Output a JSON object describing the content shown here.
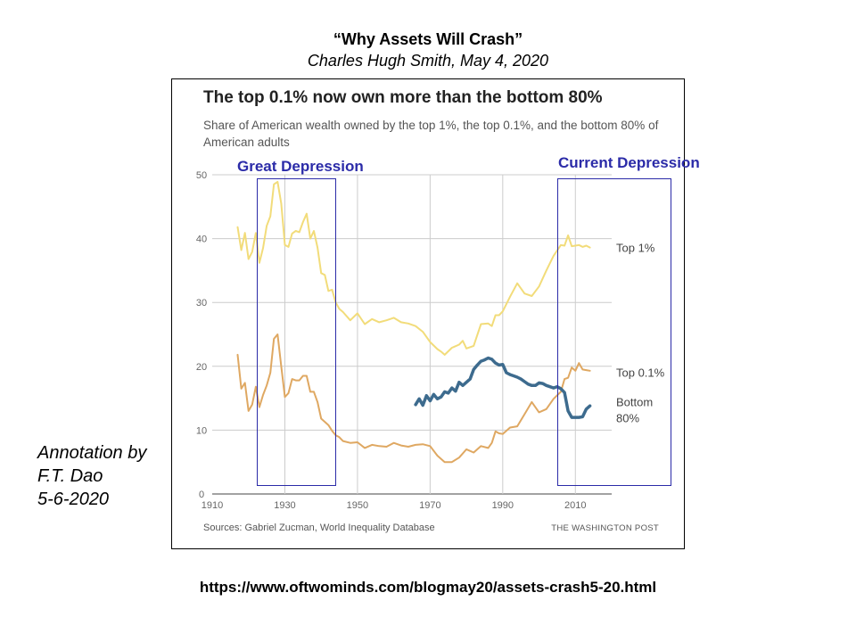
{
  "slide": {
    "title": "“Why Assets Will Crash”",
    "subtitle": "Charles Hugh Smith, May 4, 2020",
    "annotation_lines": [
      "Annotation by",
      "F.T. Dao",
      "5-6-2020"
    ],
    "url": "https://www.oftwominds.com/blogmay20/assets-crash5-20.html"
  },
  "annotations": {
    "great_depression": "Great Depression",
    "current_depression": "Current Depression",
    "color": "#2b2ba8"
  },
  "chart_data": {
    "type": "line",
    "title": "The top 0.1% now own more than the bottom 80%",
    "subtitle": "Share of American wealth owned by the top 1%, the top 0.1%, and the bottom 80% of American adults",
    "source": "Sources: Gabriel Zucman, World Inequality Database",
    "credit": "THE WASHINGTON POST",
    "xlim": [
      1910,
      2020
    ],
    "ylim": [
      0,
      50
    ],
    "xticks": [
      1910,
      1930,
      1950,
      1970,
      1990,
      2010
    ],
    "yticks": [
      0,
      10,
      20,
      30,
      40,
      50
    ],
    "grid": true,
    "series": [
      {
        "name": "Top 1%",
        "color": "#f2dc7a",
        "x": [
          1917,
          1918,
          1919,
          1920,
          1921,
          1922,
          1923,
          1924,
          1925,
          1926,
          1927,
          1928,
          1929,
          1930,
          1931,
          1932,
          1933,
          1934,
          1935,
          1936,
          1937,
          1938,
          1939,
          1940,
          1941,
          1942,
          1943,
          1944,
          1945,
          1946,
          1948,
          1950,
          1952,
          1954,
          1956,
          1958,
          1960,
          1962,
          1964,
          1966,
          1968,
          1970,
          1972,
          1973,
          1974,
          1976,
          1978,
          1979,
          1980,
          1982,
          1984,
          1986,
          1987,
          1988,
          1989,
          1990,
          1992,
          1994,
          1996,
          1998,
          2000,
          2002,
          2004,
          2006,
          2007,
          2008,
          2009,
          2010,
          2011,
          2012,
          2013,
          2014
        ],
        "y": [
          41.8,
          38.2,
          40.9,
          36.8,
          37.9,
          40.9,
          36.2,
          38.5,
          42.0,
          43.5,
          48.5,
          48.9,
          45.5,
          39.0,
          38.7,
          40.8,
          41.2,
          41.0,
          42.6,
          43.9,
          40.0,
          41.2,
          38.6,
          34.6,
          34.3,
          31.8,
          32.0,
          30.0,
          29.0,
          28.5,
          27.2,
          28.3,
          26.6,
          27.4,
          26.9,
          27.2,
          27.6,
          26.9,
          26.7,
          26.3,
          25.4,
          23.8,
          22.7,
          22.3,
          21.8,
          22.9,
          23.4,
          24.0,
          22.8,
          23.2,
          26.6,
          26.7,
          26.3,
          28.0,
          28.0,
          28.6,
          30.9,
          33.0,
          31.4,
          31.0,
          32.5,
          35.0,
          37.3,
          39.0,
          38.9,
          40.5,
          38.8,
          38.9,
          39.0,
          38.7,
          38.9,
          38.6
        ]
      },
      {
        "name": "Top 0.1%",
        "color": "#dfa862",
        "x": [
          1917,
          1918,
          1919,
          1920,
          1921,
          1922,
          1923,
          1924,
          1925,
          1926,
          1927,
          1928,
          1929,
          1930,
          1931,
          1932,
          1933,
          1934,
          1935,
          1936,
          1937,
          1938,
          1939,
          1940,
          1941,
          1942,
          1943,
          1944,
          1945,
          1946,
          1948,
          1950,
          1952,
          1954,
          1956,
          1958,
          1960,
          1962,
          1964,
          1966,
          1968,
          1970,
          1972,
          1974,
          1976,
          1978,
          1980,
          1982,
          1984,
          1986,
          1987,
          1988,
          1989,
          1990,
          1992,
          1994,
          1996,
          1998,
          2000,
          2002,
          2004,
          2006,
          2007,
          2008,
          2009,
          2010,
          2011,
          2012,
          2013,
          2014
        ],
        "y": [
          21.8,
          16.5,
          17.4,
          13.0,
          14.0,
          16.8,
          13.6,
          15.5,
          17.0,
          19.0,
          24.3,
          25.0,
          20.0,
          15.2,
          15.8,
          18.0,
          17.8,
          17.8,
          18.5,
          18.5,
          16.0,
          16.0,
          14.4,
          11.8,
          11.3,
          10.8,
          9.9,
          9.2,
          8.9,
          8.3,
          8.0,
          8.1,
          7.2,
          7.7,
          7.5,
          7.4,
          8.0,
          7.6,
          7.4,
          7.7,
          7.8,
          7.5,
          6.0,
          5.0,
          5.0,
          5.7,
          7.0,
          6.5,
          7.5,
          7.2,
          8.0,
          9.8,
          9.5,
          9.4,
          10.4,
          10.6,
          12.5,
          14.4,
          12.8,
          13.3,
          14.9,
          16.0,
          18.0,
          18.2,
          19.8,
          19.3,
          20.5,
          19.5,
          19.4,
          19.3
        ]
      },
      {
        "name": "Bottom 80%",
        "color": "#3d6b8e",
        "x": [
          1966,
          1967,
          1968,
          1969,
          1970,
          1971,
          1972,
          1973,
          1974,
          1975,
          1976,
          1977,
          1978,
          1979,
          1980,
          1981,
          1982,
          1983,
          1984,
          1985,
          1986,
          1987,
          1988,
          1989,
          1990,
          1991,
          1992,
          1993,
          1994,
          1995,
          1996,
          1997,
          1998,
          1999,
          2000,
          2001,
          2002,
          2003,
          2004,
          2005,
          2006,
          2007,
          2008,
          2009,
          2010,
          2011,
          2012,
          2013,
          2014
        ],
        "y": [
          14.0,
          14.9,
          13.9,
          15.4,
          14.6,
          15.6,
          14.9,
          15.2,
          16.0,
          15.8,
          16.6,
          16.1,
          17.5,
          17.0,
          17.5,
          18.0,
          19.5,
          20.2,
          20.8,
          21.0,
          21.3,
          21.1,
          20.5,
          20.2,
          20.3,
          19.0,
          18.7,
          18.5,
          18.3,
          18.0,
          17.6,
          17.2,
          17.0,
          17.0,
          17.4,
          17.3,
          17.0,
          16.8,
          16.6,
          16.8,
          16.5,
          15.9,
          13.0,
          12.0,
          12.0,
          12.0,
          12.1,
          13.3,
          13.8
        ]
      }
    ],
    "end_labels": [
      {
        "series": "Top 1%",
        "lines": [
          "Top 1%"
        ]
      },
      {
        "series": "Top 0.1%",
        "lines": [
          "Top 0.1%"
        ]
      },
      {
        "series": "Bottom 80%",
        "lines": [
          "Bottom",
          "80%"
        ]
      }
    ]
  }
}
